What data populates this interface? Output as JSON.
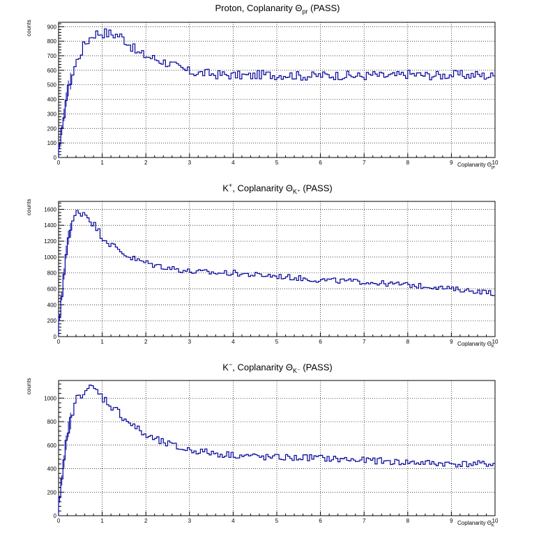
{
  "chart_data": [
    {
      "type": "histogram",
      "title": {
        "pre": "Proton, Coplanarity Θ",
        "sup": "",
        "sub": "pr",
        "post": " (PASS)"
      },
      "ylabel": "counts",
      "xlabel": {
        "pre": "Coplanarity Θ",
        "sub": "pr"
      },
      "xlim": [
        0,
        10
      ],
      "ylim": [
        0,
        930
      ],
      "ytick_step": 100,
      "ytick_max": 900,
      "grid": true,
      "color": "#000099",
      "x": [
        0,
        0.2,
        0.4,
        0.6,
        0.8,
        1.0,
        1.2,
        1.4,
        1.6,
        1.8,
        2.0,
        2.2,
        2.4,
        2.6,
        2.8,
        3.0,
        3.2,
        3.4,
        3.6,
        3.8,
        4.0,
        4.2,
        4.4,
        4.6,
        4.8,
        5.0,
        5.2,
        5.4,
        5.6,
        5.8,
        6.0,
        6.2,
        6.4,
        6.6,
        6.8,
        7.0,
        7.2,
        7.4,
        7.6,
        7.8,
        8.0,
        8.2,
        8.4,
        8.6,
        8.8,
        9.0,
        9.2,
        9.4,
        9.6,
        9.8,
        10.0
      ],
      "y": [
        30,
        450,
        650,
        780,
        850,
        860,
        850,
        840,
        790,
        720,
        700,
        680,
        660,
        640,
        610,
        590,
        580,
        580,
        570,
        570,
        565,
        565,
        560,
        570,
        570,
        565,
        570,
        565,
        560,
        560,
        565,
        565,
        565,
        565,
        560,
        560,
        570,
        560,
        560,
        565,
        575,
        570,
        565,
        565,
        565,
        570,
        570,
        565,
        570,
        560,
        560
      ]
    },
    {
      "type": "histogram",
      "title": {
        "pre": "K",
        "sup": "+",
        "sub": "",
        "post": ", Coplanarity Θ",
        "sub2": "K⁺",
        "post2": " (PASS)"
      },
      "ylabel": "counts",
      "xlabel": {
        "pre": "Coplanarity Θ",
        "sub": "K"
      },
      "xlim": [
        0,
        10
      ],
      "ylim": [
        0,
        1700
      ],
      "ytick_step": 200,
      "ytick_max": 1600,
      "grid": true,
      "color": "#000099",
      "x": [
        0,
        0.2,
        0.4,
        0.6,
        0.8,
        1.0,
        1.2,
        1.4,
        1.6,
        1.8,
        2.0,
        2.2,
        2.4,
        2.6,
        2.8,
        3.0,
        3.2,
        3.4,
        3.6,
        3.8,
        4.0,
        4.2,
        4.4,
        4.6,
        4.8,
        5.0,
        5.2,
        5.4,
        5.6,
        5.8,
        6.0,
        6.2,
        6.4,
        6.6,
        6.8,
        7.0,
        7.2,
        7.4,
        7.6,
        7.8,
        8.0,
        8.2,
        8.4,
        8.6,
        8.8,
        9.0,
        9.2,
        9.4,
        9.6,
        9.8,
        10.0
      ],
      "y": [
        100,
        1200,
        1560,
        1560,
        1420,
        1260,
        1160,
        1080,
        1010,
        960,
        930,
        900,
        880,
        860,
        840,
        820,
        810,
        810,
        800,
        800,
        800,
        790,
        780,
        770,
        770,
        760,
        750,
        740,
        730,
        720,
        710,
        710,
        700,
        700,
        690,
        690,
        680,
        670,
        660,
        660,
        650,
        640,
        630,
        630,
        610,
        600,
        590,
        580,
        570,
        560,
        540
      ]
    },
    {
      "type": "histogram",
      "title": {
        "pre": "K",
        "sup": "−",
        "sub": "",
        "post": ", Coplanarity Θ",
        "sub2": "K⁻",
        "post2": " (PASS)"
      },
      "ylabel": "counts",
      "xlabel": {
        "pre": "Coplanarity Θ",
        "sub": "K"
      },
      "xlim": [
        0,
        10
      ],
      "ylim": [
        0,
        1150
      ],
      "ytick_step": 200,
      "ytick_max": 1000,
      "grid": true,
      "color": "#000099",
      "x": [
        0,
        0.2,
        0.4,
        0.6,
        0.8,
        1.0,
        1.2,
        1.4,
        1.6,
        1.8,
        2.0,
        2.2,
        2.4,
        2.6,
        2.8,
        3.0,
        3.2,
        3.4,
        3.6,
        3.8,
        4.0,
        4.2,
        4.4,
        4.6,
        4.8,
        5.0,
        5.2,
        5.4,
        5.6,
        5.8,
        6.0,
        6.2,
        6.4,
        6.6,
        6.8,
        7.0,
        7.2,
        7.4,
        7.6,
        7.8,
        8.0,
        8.2,
        8.4,
        8.6,
        8.8,
        9.0,
        9.2,
        9.4,
        9.6,
        9.8,
        10.0
      ],
      "y": [
        60,
        700,
        980,
        1080,
        1080,
        1010,
        940,
        870,
        800,
        740,
        680,
        650,
        620,
        600,
        570,
        560,
        550,
        540,
        530,
        520,
        520,
        510,
        510,
        500,
        495,
        495,
        495,
        490,
        495,
        495,
        490,
        485,
        480,
        480,
        470,
        470,
        470,
        465,
        460,
        455,
        455,
        450,
        450,
        445,
        445,
        440,
        440,
        440,
        440,
        440,
        440
      ]
    }
  ]
}
